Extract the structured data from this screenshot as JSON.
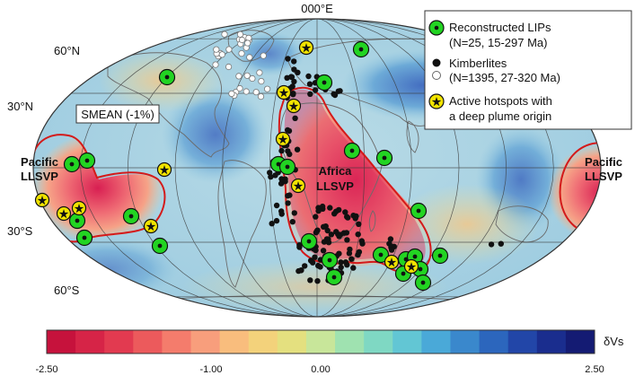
{
  "map": {
    "projection": "mollweide",
    "meridian_label": "000°E",
    "parallel_labels": [
      "60°N",
      "30°N",
      "30°S",
      "60°S"
    ],
    "contour_label": "SMEAN (-1%)",
    "regions": [
      {
        "name": "pacific-west",
        "line1": "Pacific",
        "line2": "LLSVP"
      },
      {
        "name": "africa",
        "line1": "Africa",
        "line2": "LLSVP"
      },
      {
        "name": "pacific-east",
        "line1": "Pacific",
        "line2": "LLSVP"
      }
    ],
    "colors": {
      "lip_fill": "#22d422",
      "lip_center": "#111111",
      "kimberlite_black": "#111111",
      "kimberlite_white": "#ffffff",
      "hotspot_fill": "#f2e400",
      "contour": "#d41a1a"
    }
  },
  "legend": {
    "items": [
      {
        "symbol": "lip",
        "line1": "Reconstructed LIPs",
        "line2": "(N=25,  15-297 Ma)"
      },
      {
        "symbol": "kimberlite",
        "line1": "Kimberlites",
        "line2": "(N=1395, 27-320 Ma)"
      },
      {
        "symbol": "hotspot",
        "line1": "Active hotspots with",
        "line2": "a deep plume origin"
      }
    ]
  },
  "colorbar": {
    "variable": "δVs",
    "min": -2.5,
    "max": 2.5,
    "tick_labels": [
      "-2.50",
      "-1.00",
      "0.00",
      "2.50"
    ],
    "tick_values": [
      -2.5,
      -1.0,
      0.0,
      2.5
    ],
    "colors": [
      "#c6123c",
      "#d62447",
      "#e23a50",
      "#ec5a5c",
      "#f47c6c",
      "#f89e7c",
      "#f9bd7d",
      "#f3d27b",
      "#e4e07f",
      "#c8e69a",
      "#9fe2b0",
      "#7fd8c3",
      "#62c6d4",
      "#4aa9d8",
      "#3a88cc",
      "#2c66bd",
      "#2246a8",
      "#1a2d8e",
      "#141b73"
    ]
  }
}
